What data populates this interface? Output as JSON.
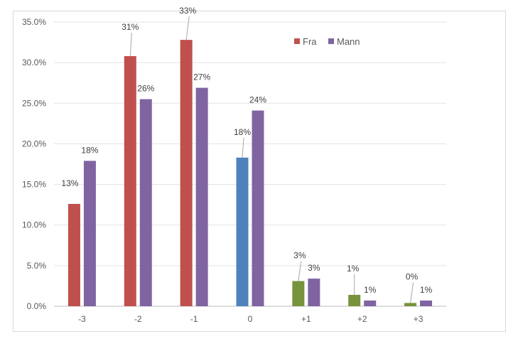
{
  "chart_data": {
    "type": "bar",
    "categories": [
      "-3",
      "-2",
      "-1",
      "0",
      "+1",
      "+2",
      "+3"
    ],
    "series": [
      {
        "name": "Fra",
        "color": "#c0504d",
        "values": [
          12.6,
          30.8,
          32.8,
          18.3,
          3.1,
          1.4,
          0.4
        ],
        "labels": [
          "13%",
          "31%",
          "33%",
          "18%",
          "3%",
          "1%",
          "0%"
        ],
        "point_colors": [
          "#c0504d",
          "#c0504d",
          "#c0504d",
          "#4f81bd",
          "#77933c",
          "#77933c",
          "#77933c"
        ]
      },
      {
        "name": "Mann",
        "color": "#8064a2",
        "values": [
          17.9,
          25.5,
          26.9,
          24.1,
          3.4,
          0.7,
          0.7
        ],
        "labels": [
          "18%",
          "26%",
          "27%",
          "24%",
          "3%",
          "1%",
          "1%"
        ]
      }
    ],
    "title": "",
    "xlabel": "",
    "ylabel": "",
    "ylim": [
      0,
      35
    ],
    "yticks": [
      "0.0%",
      "5.0%",
      "10.0%",
      "15.0%",
      "20.0%",
      "25.0%",
      "30.0%",
      "35.0%"
    ],
    "grid": true,
    "legend": "top-right"
  }
}
